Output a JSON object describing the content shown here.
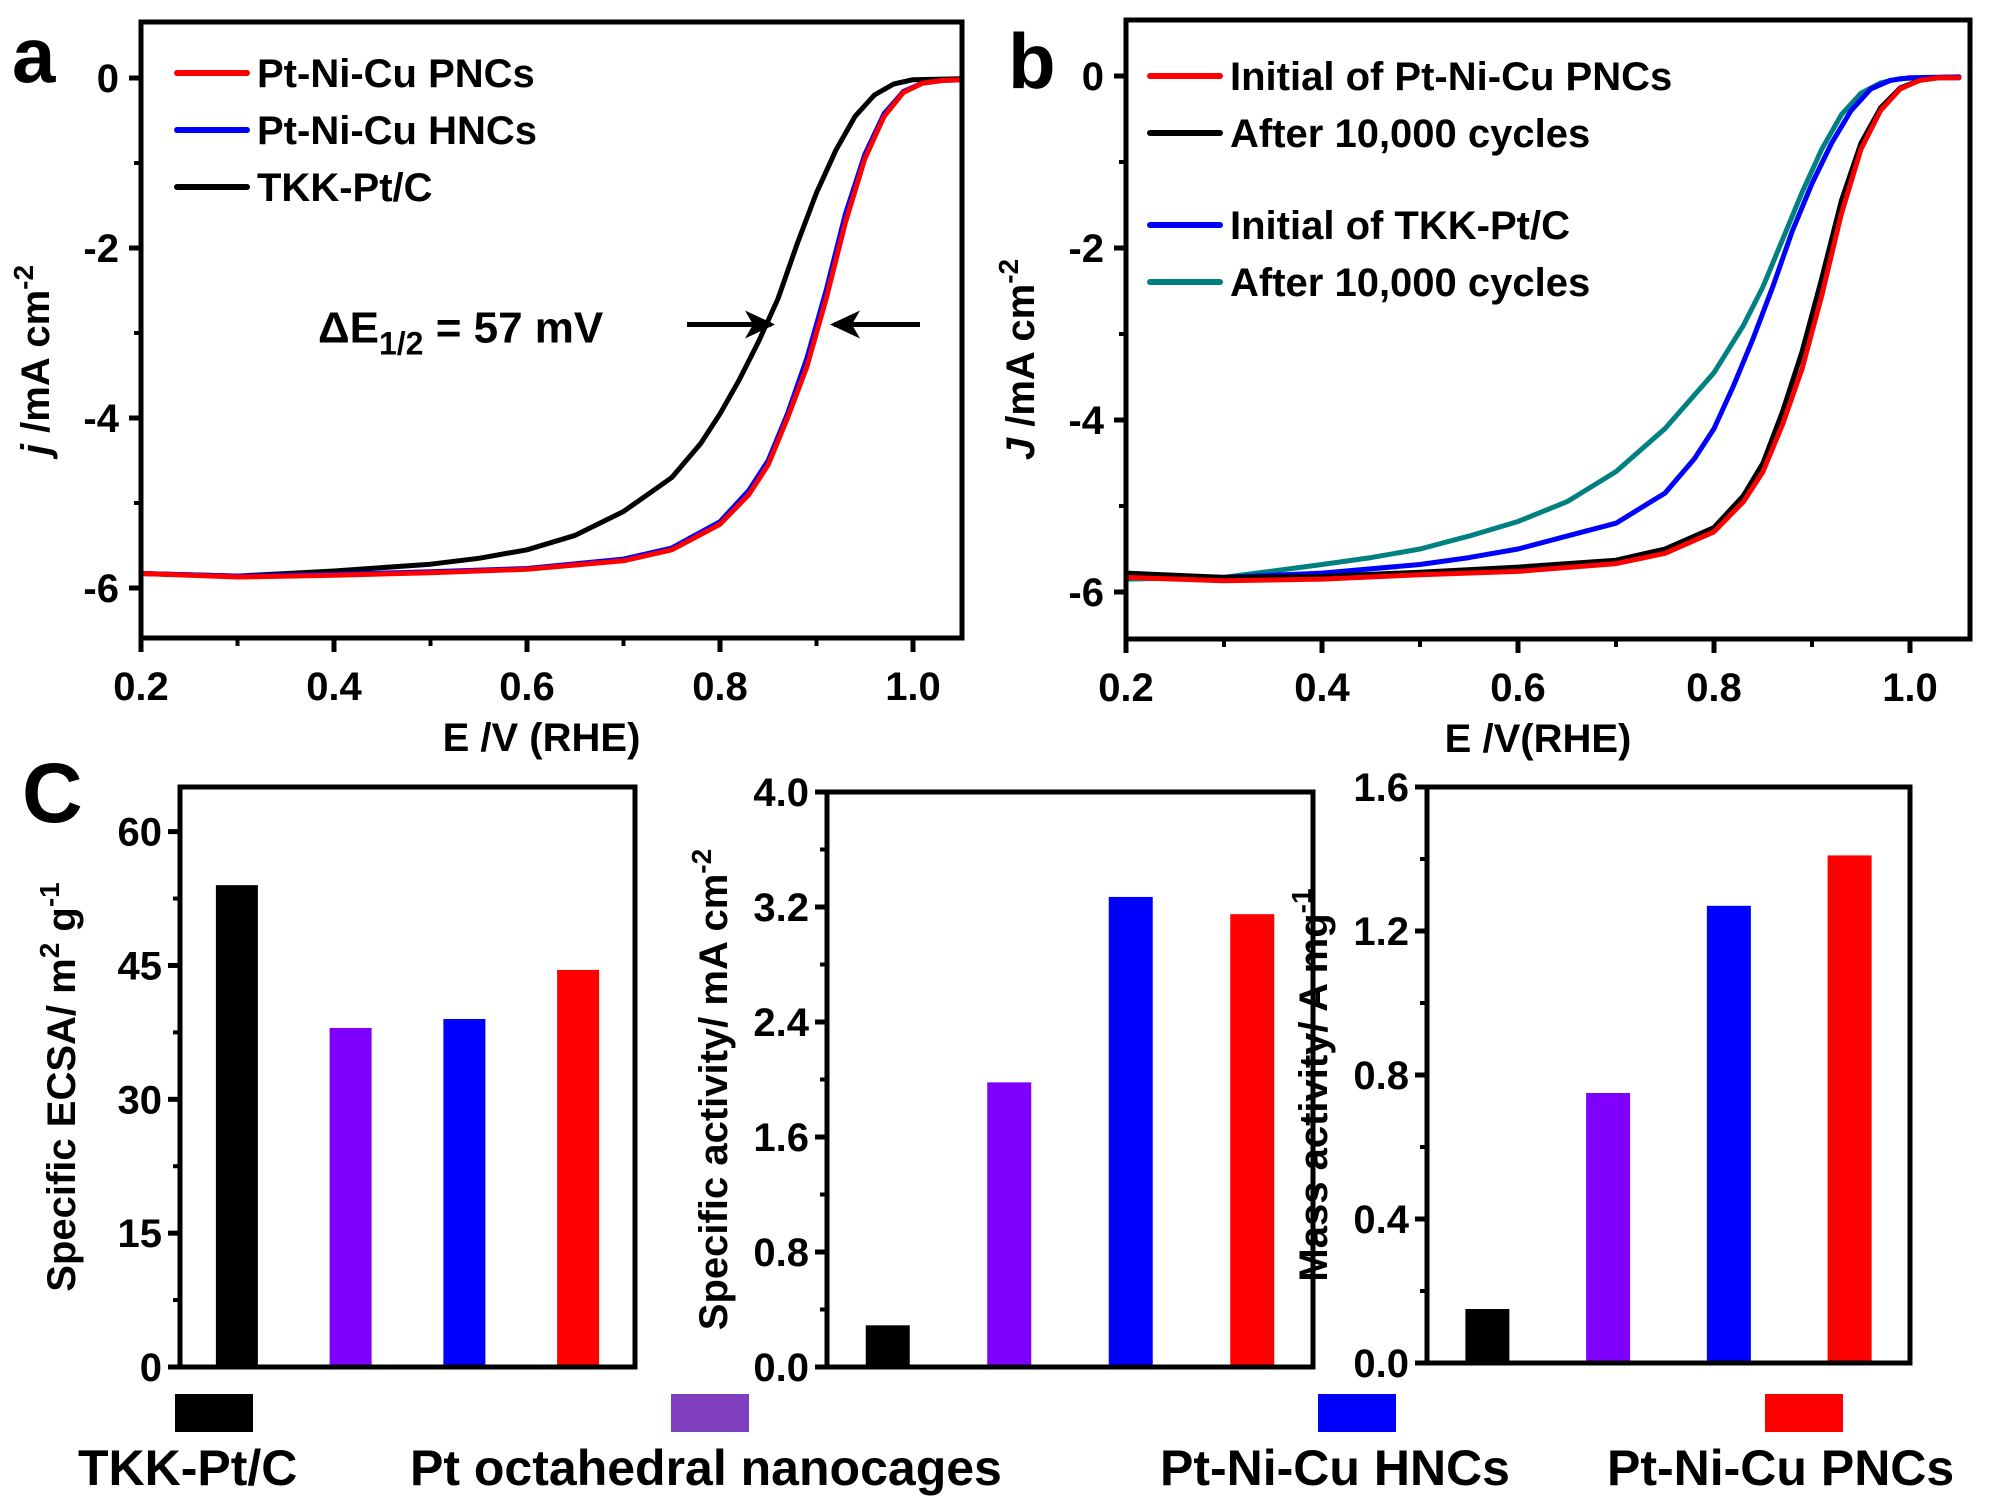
{
  "figure": {
    "panel_letters": [
      "a",
      "b",
      "C"
    ]
  },
  "chart_data": [
    {
      "id": "a",
      "type": "line",
      "title": "",
      "xlabel": "E /V (RHE)",
      "ylabel_main": "j /mA cm",
      "ylabel_sup": "-2",
      "xlim": [
        0.2,
        1.05
      ],
      "ylim": [
        -6.5,
        0.6
      ],
      "xticks": [
        0.2,
        0.4,
        0.6,
        0.8,
        1.0
      ],
      "xtick_labels": [
        "0.2",
        "0.4",
        "0.6",
        "0.8",
        "1.0"
      ],
      "yticks": [
        0,
        -2,
        -4,
        -6
      ],
      "ytick_labels": [
        "0",
        "-2",
        "-4",
        "-6"
      ],
      "legend_position": "top-left",
      "annotation": {
        "prefix": "ΔE",
        "sub": "1/2",
        "suffix": " = 57 mV",
        "left_arrow_at_x": 0.857,
        "right_arrow_at_x": 0.914,
        "at_y": -2.9
      },
      "series": [
        {
          "name": "Pt-Ni-Cu PNCs",
          "color": "#ff0000",
          "x": [
            0.2,
            0.3,
            0.4,
            0.5,
            0.6,
            0.7,
            0.75,
            0.8,
            0.83,
            0.85,
            0.87,
            0.89,
            0.91,
            0.93,
            0.95,
            0.97,
            0.99,
            1.01,
            1.03,
            1.05
          ],
          "y": [
            -5.83,
            -5.87,
            -5.85,
            -5.82,
            -5.78,
            -5.68,
            -5.55,
            -5.25,
            -4.9,
            -4.55,
            -4.0,
            -3.4,
            -2.6,
            -1.7,
            -0.95,
            -0.45,
            -0.17,
            -0.06,
            -0.03,
            -0.02
          ]
        },
        {
          "name": "Pt-Ni-Cu HNCs",
          "color": "#0000ff",
          "x": [
            0.2,
            0.3,
            0.4,
            0.5,
            0.6,
            0.7,
            0.75,
            0.8,
            0.83,
            0.85,
            0.87,
            0.89,
            0.91,
            0.93,
            0.95,
            0.97,
            0.99,
            1.01,
            1.03,
            1.05
          ],
          "y": [
            -5.83,
            -5.86,
            -5.84,
            -5.81,
            -5.77,
            -5.66,
            -5.53,
            -5.22,
            -4.85,
            -4.5,
            -3.95,
            -3.3,
            -2.5,
            -1.6,
            -0.9,
            -0.42,
            -0.16,
            -0.06,
            -0.03,
            -0.02
          ]
        },
        {
          "name": "TKK-Pt/C",
          "color": "#000000",
          "x": [
            0.2,
            0.3,
            0.4,
            0.5,
            0.55,
            0.6,
            0.65,
            0.7,
            0.75,
            0.78,
            0.8,
            0.82,
            0.84,
            0.86,
            0.88,
            0.9,
            0.92,
            0.94,
            0.96,
            0.98,
            1.0,
            1.05
          ],
          "y": [
            -5.83,
            -5.86,
            -5.8,
            -5.72,
            -5.65,
            -5.55,
            -5.38,
            -5.1,
            -4.7,
            -4.3,
            -3.95,
            -3.55,
            -3.1,
            -2.6,
            -1.95,
            -1.35,
            -0.85,
            -0.45,
            -0.2,
            -0.07,
            -0.02,
            -0.01
          ]
        }
      ]
    },
    {
      "id": "b",
      "type": "line",
      "title": "",
      "xlabel": "E /V(RHE)",
      "ylabel_main": "J /mA cm",
      "ylabel_sup": "-2",
      "xlim": [
        0.2,
        1.05
      ],
      "ylim": [
        -6.5,
        0.6
      ],
      "xticks": [
        0.2,
        0.4,
        0.6,
        0.8,
        1.0
      ],
      "xtick_labels": [
        "0.2",
        "0.4",
        "0.6",
        "0.8",
        "1.0"
      ],
      "yticks": [
        0,
        -2,
        -4,
        -6
      ],
      "ytick_labels": [
        "0",
        "-2",
        "-4",
        "-6"
      ],
      "legend_position": "top-left",
      "series": [
        {
          "name": "Initial of Pt-Ni-Cu PNCs",
          "color": "#ff0000",
          "x": [
            0.2,
            0.3,
            0.4,
            0.5,
            0.6,
            0.7,
            0.75,
            0.8,
            0.83,
            0.85,
            0.87,
            0.89,
            0.91,
            0.93,
            0.95,
            0.97,
            0.99,
            1.01,
            1.03,
            1.05
          ],
          "y": [
            -5.83,
            -5.87,
            -5.85,
            -5.8,
            -5.76,
            -5.67,
            -5.55,
            -5.3,
            -4.95,
            -4.6,
            -4.05,
            -3.4,
            -2.55,
            -1.6,
            -0.85,
            -0.4,
            -0.15,
            -0.05,
            -0.02,
            -0.02
          ]
        },
        {
          "name": "After 10,000 cycles",
          "color": "#000000",
          "x": [
            0.2,
            0.3,
            0.4,
            0.5,
            0.6,
            0.7,
            0.75,
            0.8,
            0.83,
            0.85,
            0.87,
            0.89,
            0.91,
            0.93,
            0.95,
            0.97,
            0.99,
            1.01,
            1.03,
            1.05
          ],
          "y": [
            -5.78,
            -5.83,
            -5.82,
            -5.77,
            -5.71,
            -5.63,
            -5.5,
            -5.25,
            -4.88,
            -4.5,
            -3.9,
            -3.2,
            -2.35,
            -1.45,
            -0.78,
            -0.37,
            -0.14,
            -0.05,
            -0.02,
            -0.02
          ]
        },
        {
          "name": "Initial of TKK-Pt/C",
          "color": "#0000ff",
          "x": [
            0.2,
            0.3,
            0.4,
            0.5,
            0.55,
            0.6,
            0.65,
            0.7,
            0.75,
            0.78,
            0.8,
            0.82,
            0.84,
            0.86,
            0.88,
            0.9,
            0.92,
            0.94,
            0.96,
            0.98,
            1.0,
            1.05
          ],
          "y": [
            -5.8,
            -5.83,
            -5.78,
            -5.68,
            -5.6,
            -5.5,
            -5.35,
            -5.2,
            -4.85,
            -4.45,
            -4.1,
            -3.6,
            -3.05,
            -2.45,
            -1.8,
            -1.25,
            -0.78,
            -0.4,
            -0.15,
            -0.05,
            -0.02,
            -0.01
          ]
        },
        {
          "name": "After 10,000 cycles",
          "color": "#008080",
          "x": [
            0.2,
            0.3,
            0.4,
            0.45,
            0.5,
            0.55,
            0.6,
            0.65,
            0.7,
            0.75,
            0.8,
            0.83,
            0.85,
            0.87,
            0.89,
            0.91,
            0.93,
            0.95,
            0.97,
            0.99,
            1.02,
            1.05
          ],
          "y": [
            -5.85,
            -5.83,
            -5.68,
            -5.6,
            -5.5,
            -5.35,
            -5.18,
            -4.95,
            -4.6,
            -4.1,
            -3.45,
            -2.9,
            -2.45,
            -1.9,
            -1.35,
            -0.85,
            -0.45,
            -0.2,
            -0.08,
            -0.03,
            -0.02,
            -0.01
          ]
        }
      ]
    },
    {
      "id": "c1",
      "type": "bar",
      "title": "",
      "xlabel": "",
      "ylabel_main": "Specific ECSA/ m",
      "ylabel_sup1": "2",
      "ylabel_mid": " g",
      "ylabel_sup2": "-1",
      "ylim": [
        0,
        65
      ],
      "yticks": [
        0,
        15,
        30,
        45,
        60
      ],
      "ytick_labels": [
        "0",
        "15",
        "30",
        "45",
        "60"
      ],
      "categories": [
        "TKK-Pt/C",
        "Pt octahedral nanocages",
        "Pt-Ni-Cu HNCs",
        "Pt-Ni-Cu PNCs"
      ],
      "values": [
        54.0,
        38.0,
        39.0,
        44.5
      ],
      "colors": [
        "#000000",
        "#7f00ff",
        "#0000ff",
        "#ff0000"
      ]
    },
    {
      "id": "c2",
      "type": "bar",
      "title": "",
      "xlabel": "",
      "ylabel_main": "Specific activity/ mA cm",
      "ylabel_sup1": "-2",
      "ylim": [
        0,
        4.0
      ],
      "yticks": [
        0.0,
        0.8,
        1.6,
        2.4,
        3.2,
        4.0
      ],
      "ytick_labels": [
        "0.0",
        "0.8",
        "1.6",
        "2.4",
        "3.2",
        "4.0"
      ],
      "categories": [
        "TKK-Pt/C",
        "Pt octahedral nanocages",
        "Pt-Ni-Cu HNCs",
        "Pt-Ni-Cu PNCs"
      ],
      "values": [
        0.29,
        1.98,
        3.27,
        3.15
      ],
      "colors": [
        "#000000",
        "#7f00ff",
        "#0000ff",
        "#ff0000"
      ]
    },
    {
      "id": "c3",
      "type": "bar",
      "title": "",
      "xlabel": "",
      "ylabel_main": "Mass activity/ A mg",
      "ylabel_sup1": "-1",
      "ylim": [
        0,
        1.6
      ],
      "yticks": [
        0.0,
        0.4,
        0.8,
        1.2,
        1.6
      ],
      "ytick_labels": [
        "0.0",
        "0.4",
        "0.8",
        "1.2",
        "1.6"
      ],
      "categories": [
        "TKK-Pt/C",
        "Pt octahedral nanocages",
        "Pt-Ni-Cu HNCs",
        "Pt-Ni-Cu PNCs"
      ],
      "values": [
        0.15,
        0.75,
        1.27,
        1.41
      ],
      "colors": [
        "#000000",
        "#7f00ff",
        "#0000ff",
        "#ff0000"
      ]
    }
  ],
  "bottom_legend": {
    "items": [
      {
        "label": "TKK-Pt/C",
        "color": "#000000"
      },
      {
        "label": "Pt octahedral nanocages",
        "color": "#7f3fbf"
      },
      {
        "label": "Pt-Ni-Cu HNCs",
        "color": "#0000ff"
      },
      {
        "label": "Pt-Ni-Cu PNCs",
        "color": "#ff0000"
      }
    ]
  }
}
